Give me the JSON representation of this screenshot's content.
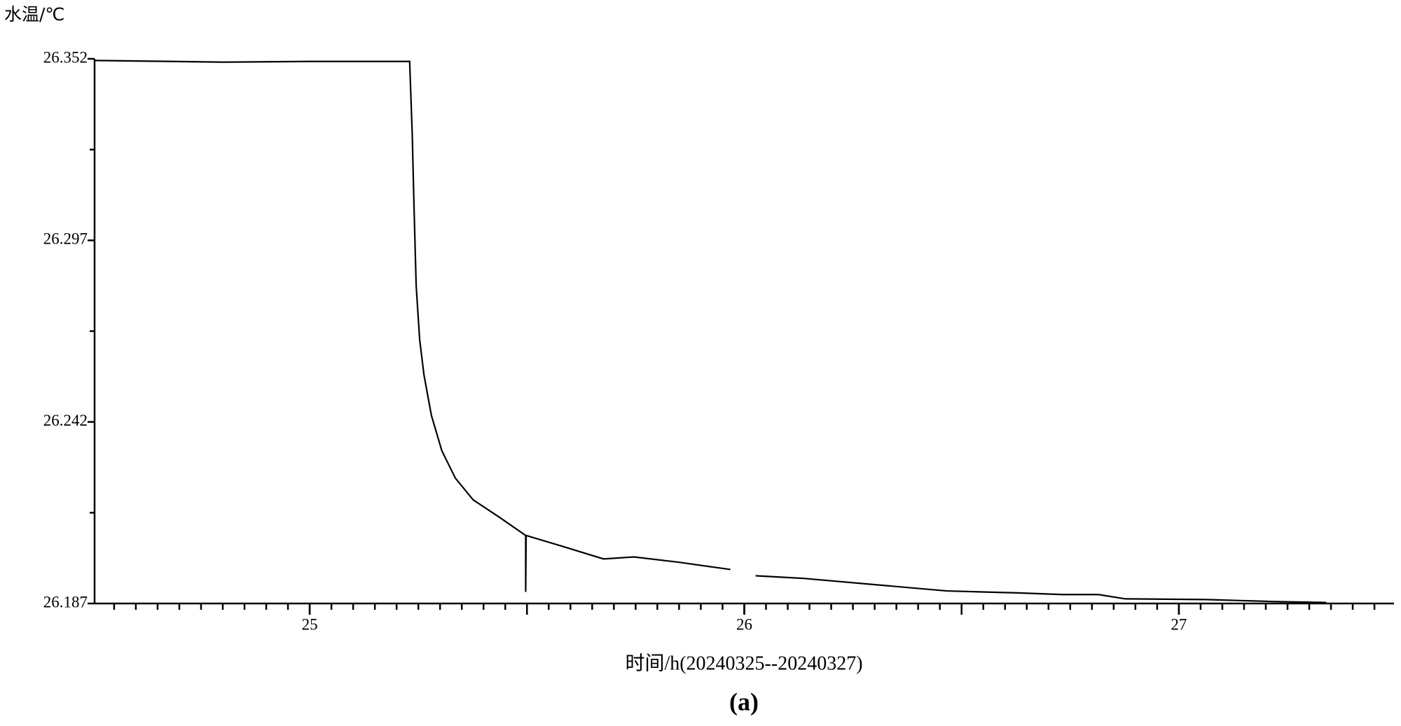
{
  "chart_data": {
    "type": "line",
    "y_label": "水温/℃",
    "x_label": "时间/h(20240325--20240327)",
    "caption": "(a)",
    "xlim": [
      24.505,
      27.495
    ],
    "xticks": [
      25,
      26,
      27
    ],
    "ylim": [
      26.187,
      26.352
    ],
    "yticks": [
      26.187,
      26.242,
      26.297,
      26.352
    ],
    "grid": false,
    "x": [
      24.505,
      24.8,
      25.0,
      25.23,
      25.236,
      25.24,
      25.245,
      25.253,
      25.263,
      25.28,
      25.304,
      25.335,
      25.376,
      25.438,
      25.497,
      25.497,
      25.498,
      25.582,
      25.676,
      25.746,
      25.849,
      25.968,
      25.99,
      26.026,
      26.137,
      26.301,
      26.466,
      26.63,
      26.733,
      26.815,
      26.877,
      27.062,
      27.216,
      27.339
    ],
    "series": [
      {
        "color": "#000000",
        "values": [
          26.3515,
          26.351,
          26.3512,
          26.3512,
          26.329,
          26.3076,
          26.2833,
          26.267,
          26.2562,
          26.244,
          26.2333,
          26.225,
          26.2184,
          26.213,
          26.2076,
          26.1905,
          26.2076,
          26.2043,
          26.2005,
          26.2011,
          26.1995,
          26.1973,
          null,
          26.1954,
          26.1946,
          26.1927,
          26.1908,
          26.1902,
          26.1897,
          26.1897,
          26.1884,
          26.1882,
          26.1876,
          26.1873
        ]
      }
    ]
  }
}
